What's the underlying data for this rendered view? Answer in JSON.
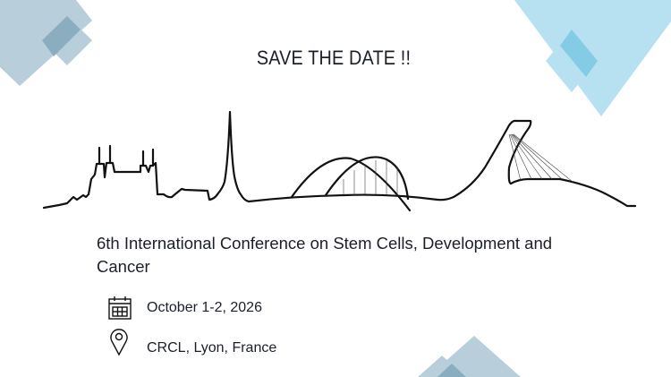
{
  "header": {
    "title": "SAVE THE DATE !!"
  },
  "conference": {
    "name": "6th International Conference on Stem Cells, Development and Cancer"
  },
  "details": {
    "date": "October 1-2, 2026",
    "location": "CRCL, Lyon, France",
    "date_icon": "calendar-icon",
    "location_icon": "map-pin-icon"
  },
  "colors": {
    "grey_blue": "#b8cfdb",
    "grey_blue_dark": "#8aadbf",
    "sky_blue": "#b7e1f0",
    "sky_blue_dark": "#84cbe6",
    "text": "#1b1f2a"
  }
}
